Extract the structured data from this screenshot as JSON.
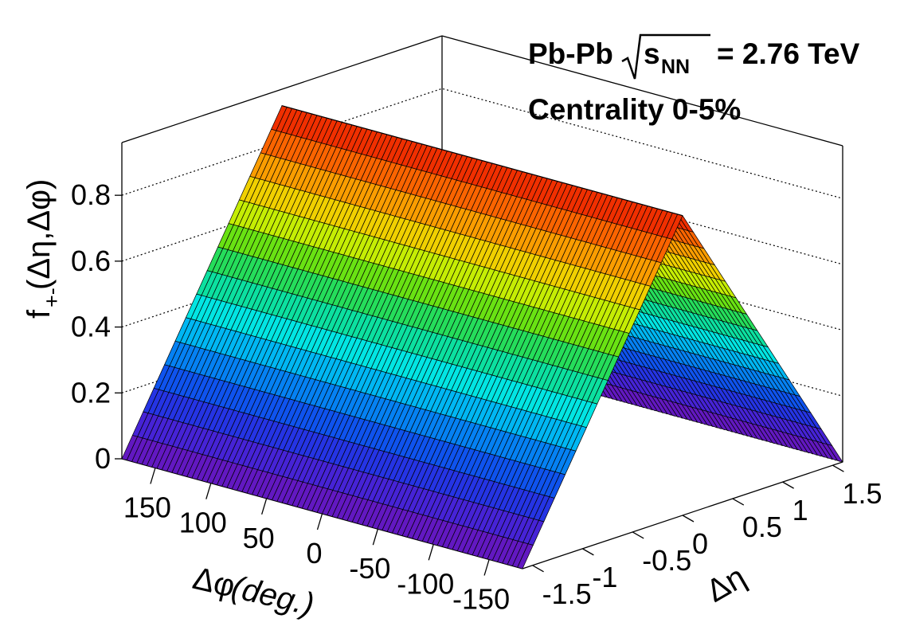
{
  "annotation": {
    "system": "Pb-Pb",
    "energy_prefix": "s",
    "energy_sub": "NN",
    "energy_value": "= 2.76 TeV",
    "centrality": "Centrality 0-5%"
  },
  "axes": {
    "z_title": {
      "f": "f",
      "sub": "+-",
      "args": "(Δη,Δφ)"
    },
    "x_title": {
      "symbol": "Δφ",
      "unit": " (deg.)"
    },
    "y_title": "Δη"
  },
  "chart_data": {
    "type": "surface3d",
    "description_free": true,
    "x_axis": {
      "label": "Δφ (deg.)",
      "range": [
        180,
        -180
      ],
      "ticks": [
        "150",
        "100",
        "50",
        "0",
        "-50",
        "-100",
        "-150"
      ],
      "tick_values": [
        150,
        100,
        50,
        0,
        -50,
        -100,
        -150
      ]
    },
    "y_axis": {
      "label": "Δη",
      "range": [
        -1.6,
        1.6
      ],
      "ticks": [
        "-1.5",
        "-1",
        "-0.5",
        "0",
        "0.5",
        "1",
        "1.5"
      ],
      "tick_values": [
        -1.5,
        -1,
        -0.5,
        0,
        0.5,
        1,
        1.5
      ]
    },
    "z_axis": {
      "label": "f+-(Δη,Δφ)",
      "range": [
        0,
        0.96
      ],
      "ticks": [
        "0",
        "0.2",
        "0.4",
        "0.6",
        "0.8"
      ],
      "tick_values": [
        0,
        0.2,
        0.4,
        0.6,
        0.8
      ]
    },
    "surface": {
      "dphi_dependence": "constant",
      "deta_peak": 0,
      "z_at_peak": 0.91,
      "z_at_edges": 0.0
    },
    "grid": true,
    "colormap": "rainbow"
  }
}
